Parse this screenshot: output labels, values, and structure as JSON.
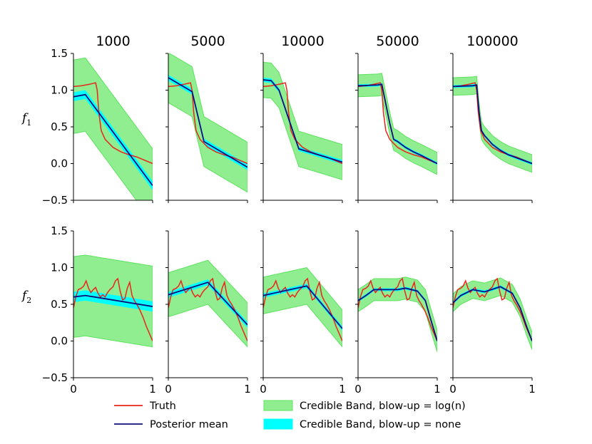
{
  "chart_data": {
    "type": "line",
    "columns": [
      "1000",
      "5000",
      "10000",
      "50000",
      "100000"
    ],
    "rows": [
      {
        "label": "f",
        "subscript": "1"
      },
      {
        "label": "f",
        "subscript": "2"
      }
    ],
    "xlim": [
      0,
      1
    ],
    "ylim": [
      -0.5,
      1.5
    ],
    "xticks": [
      0,
      1
    ],
    "yticks": [
      -0.5,
      0.0,
      0.5,
      1.0,
      1.5
    ],
    "ytick_labels": [
      "−0.5",
      "0.0",
      "0.5",
      "1.0",
      "1.5"
    ],
    "xtick_labels": [
      "0",
      "1"
    ],
    "colors": {
      "truth": "#e8261c",
      "posterior_mean": "#0d0d7a",
      "band_log": "#90ee90",
      "band_log_edge": "#5be35b",
      "band_none": "#00ffff"
    },
    "legend": {
      "truth": "Truth",
      "posterior_mean": "Posterior mean",
      "band_log": "Credible Band, blow-up = log(n)",
      "band_none": "Credible Band, blow-up = none"
    },
    "truth": {
      "f1": {
        "x": [
          0,
          0.1,
          0.2,
          0.28,
          0.3,
          0.32,
          0.35,
          0.4,
          0.5,
          0.6,
          0.7,
          0.8,
          1.0
        ],
        "y": [
          1.05,
          1.06,
          1.08,
          1.1,
          1.0,
          0.7,
          0.45,
          0.33,
          0.22,
          0.16,
          0.12,
          0.09,
          0.0
        ]
      },
      "f2": {
        "x": [
          0,
          0.03,
          0.06,
          0.1,
          0.13,
          0.16,
          0.19,
          0.22,
          0.25,
          0.28,
          0.31,
          0.34,
          0.37,
          0.4,
          0.43,
          0.46,
          0.5,
          0.53,
          0.56,
          0.59,
          0.62,
          0.65,
          0.68,
          0.71,
          0.74,
          0.77,
          0.8,
          0.84,
          0.88,
          0.92,
          0.96,
          1.0
        ],
        "y": [
          0.45,
          0.6,
          0.7,
          0.72,
          0.75,
          0.82,
          0.72,
          0.66,
          0.7,
          0.73,
          0.65,
          0.6,
          0.63,
          0.6,
          0.66,
          0.7,
          0.74,
          0.82,
          0.85,
          0.68,
          0.56,
          0.58,
          0.72,
          0.8,
          0.62,
          0.55,
          0.5,
          0.42,
          0.32,
          0.2,
          0.1,
          0.0
        ]
      }
    },
    "panels": [
      {
        "column": "1000",
        "f1": {
          "x": [
            0,
            0.15,
            1.0
          ],
          "mean": [
            0.91,
            0.94,
            -0.3
          ],
          "log_half": 0.5,
          "none_half": 0.06
        },
        "f2": {
          "x": [
            0,
            0.15,
            1.0
          ],
          "mean": [
            0.6,
            0.62,
            0.47
          ],
          "log_half": 0.55,
          "none_half": 0.07
        }
      },
      {
        "column": "5000",
        "f1": {
          "x": [
            0,
            0.3,
            0.45,
            1.0
          ],
          "mean": [
            1.17,
            0.98,
            0.3,
            -0.05
          ],
          "log_half": 0.34,
          "none_half": 0.04
        },
        "f2": {
          "x": [
            0,
            0.5,
            1.0
          ],
          "mean": [
            0.63,
            0.8,
            0.22
          ],
          "log_half": 0.3,
          "none_half": 0.04
        }
      },
      {
        "column": "10000",
        "f1": {
          "x": [
            0,
            0.1,
            0.2,
            0.45,
            1.0
          ],
          "mean": [
            1.14,
            1.13,
            1.0,
            0.2,
            0.02
          ],
          "log_half": 0.24,
          "none_half": 0.03
        },
        "f2": {
          "x": [
            0,
            0.55,
            1.0
          ],
          "mean": [
            0.62,
            0.75,
            0.17
          ],
          "log_half": 0.25,
          "none_half": 0.03
        }
      },
      {
        "column": "50000",
        "f1": {
          "x": [
            0,
            0.25,
            0.3,
            0.4,
            0.45,
            0.5,
            0.6,
            0.7,
            0.8,
            1.0
          ],
          "mean": [
            1.06,
            1.07,
            1.08,
            0.55,
            0.33,
            0.3,
            0.22,
            0.16,
            0.11,
            0.0
          ],
          "log_half": 0.15,
          "none_half": 0.02
        },
        "f2": {
          "x": [
            0,
            0.1,
            0.2,
            0.5,
            0.6,
            0.75,
            0.85,
            0.93,
            1.0
          ],
          "mean": [
            0.55,
            0.62,
            0.7,
            0.7,
            0.72,
            0.68,
            0.55,
            0.25,
            0.0
          ],
          "log_half": 0.15,
          "none_half": 0.02
        }
      },
      {
        "column": "100000",
        "f1": {
          "x": [
            0,
            0.25,
            0.3,
            0.33,
            0.36,
            0.4,
            0.5,
            0.6,
            0.7,
            0.8,
            1.0
          ],
          "mean": [
            1.05,
            1.06,
            1.07,
            0.7,
            0.45,
            0.38,
            0.26,
            0.18,
            0.12,
            0.08,
            0.0
          ],
          "log_half": 0.12,
          "none_half": 0.02
        },
        "f2": {
          "x": [
            0,
            0.1,
            0.25,
            0.4,
            0.6,
            0.75,
            0.85,
            0.93,
            1.0
          ],
          "mean": [
            0.52,
            0.62,
            0.7,
            0.67,
            0.74,
            0.65,
            0.45,
            0.2,
            0.0
          ],
          "log_half": 0.12,
          "none_half": 0.02
        }
      }
    ]
  }
}
